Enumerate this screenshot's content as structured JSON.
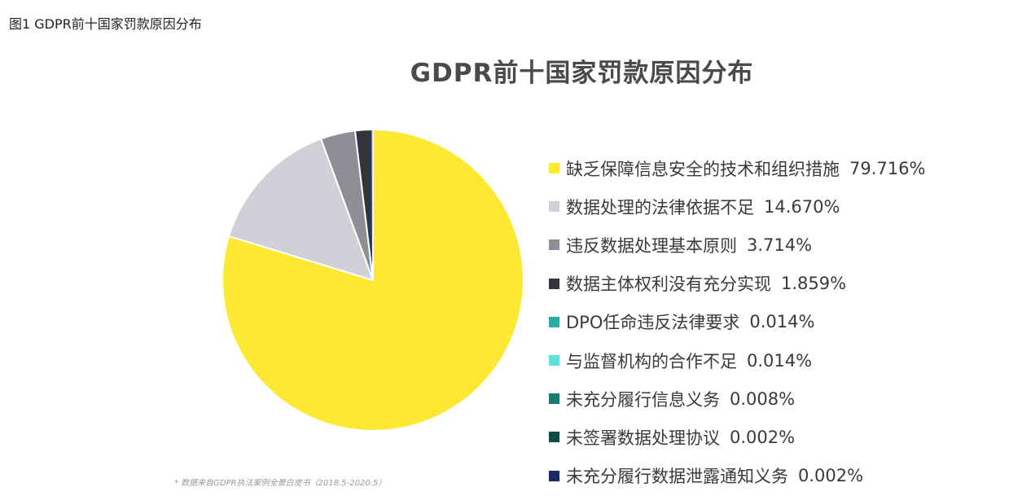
{
  "caption": "图1 GDPR前十国家罚款原因分布",
  "source_note": "* 数据来自GDPR执法案例全景白皮书（2018.5-2020.5）",
  "chart_data": {
    "type": "pie",
    "title": "GDPR前十国家罚款原因分布",
    "legend_position": "right",
    "slices": [
      {
        "label": "缺乏保障信息安全的技术和组织措施",
        "value": 79.716,
        "value_label": "79.716%",
        "color": "#FDE934"
      },
      {
        "label": "数据处理的法律依据不足",
        "value": 14.67,
        "value_label": "14.670%",
        "color": "#D0D0D8"
      },
      {
        "label": "违反数据处理基本原则",
        "value": 3.714,
        "value_label": "3.714%",
        "color": "#8E8F96"
      },
      {
        "label": "数据主体权利没有充分实现",
        "value": 1.859,
        "value_label": "1.859%",
        "color": "#34343E"
      },
      {
        "label": "DPO任命违反法律要求",
        "value": 0.014,
        "value_label": "0.014%",
        "color": "#2BABA6"
      },
      {
        "label": "与监督机构的合作不足",
        "value": 0.014,
        "value_label": "0.014%",
        "color": "#5FE0D8"
      },
      {
        "label": "未充分履行信息义务",
        "value": 0.008,
        "value_label": "0.008%",
        "color": "#197B74"
      },
      {
        "label": "未签署数据处理协议",
        "value": 0.002,
        "value_label": "0.002%",
        "color": "#0E4B44"
      },
      {
        "label": "未充分履行数据泄露通知义务",
        "value": 0.002,
        "value_label": "0.002%",
        "color": "#17295E"
      }
    ]
  }
}
